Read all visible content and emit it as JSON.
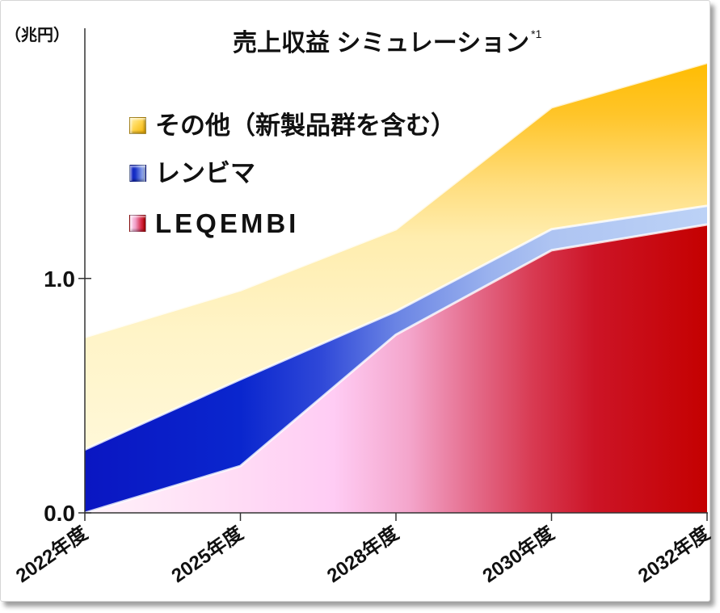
{
  "chart_data": {
    "type": "area",
    "stacked": true,
    "title": "売上収益 シミュレーション",
    "title_note": "*1",
    "xlabel": "",
    "ylabel": "（兆円）",
    "categories": [
      "2022年度",
      "2025年度",
      "2028年度",
      "2030年度",
      "2032年度"
    ],
    "ylim": [
      0,
      2.05
    ],
    "yticks": [
      {
        "value": 0.0,
        "label": "0.0"
      },
      {
        "value": 1.0,
        "label": "1.0"
      }
    ],
    "grid": false,
    "legend_position": "top-left",
    "series": [
      {
        "name": "LEQEMBI",
        "values": [
          0.0,
          0.2,
          0.76,
          1.12,
          1.23
        ],
        "color": "#C00000"
      },
      {
        "name": "レンビマ",
        "values": [
          0.27,
          0.37,
          0.1,
          0.09,
          0.08
        ],
        "color": "#0A1EC8"
      },
      {
        "name": "その他（新製品群を含む）",
        "values": [
          0.48,
          0.38,
          0.35,
          0.52,
          0.61
        ],
        "color": "#FFC000"
      }
    ]
  }
}
